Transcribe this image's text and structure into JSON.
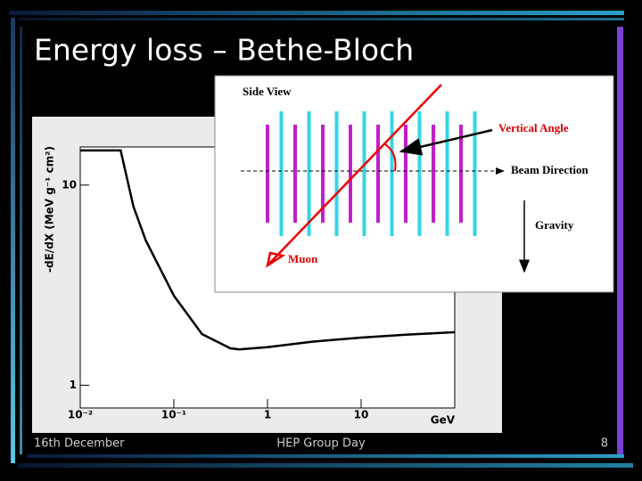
{
  "slide": {
    "title": "Energy loss – Bethe-Bloch",
    "footer": {
      "left": "16th December",
      "center": "HEP Group Day",
      "right": "8"
    }
  },
  "chart_data": {
    "type": "line",
    "x_label": "GeV",
    "y_label": "-dE/dX (MeV g⁻¹ cm²)",
    "x": [
      0.01,
      0.027,
      0.037,
      0.05,
      0.1,
      0.2,
      0.4,
      0.5,
      1,
      3,
      10,
      30,
      100
    ],
    "values": [
      14.9,
      14.9,
      7.8,
      5.3,
      2.8,
      1.8,
      1.53,
      1.51,
      1.55,
      1.65,
      1.73,
      1.79,
      1.84
    ],
    "color": "#000000",
    "xscale": "log",
    "yscale": "log",
    "xlim": [
      0.01,
      100
    ],
    "ylim": [
      0.77,
      15.5
    ],
    "xticks": [
      {
        "value": 0.01,
        "label": "10⁻²"
      },
      {
        "value": 0.1,
        "label": "10⁻¹"
      },
      1,
      10
    ],
    "yticks": [
      1,
      10
    ]
  },
  "diagram": {
    "title": "Side View",
    "labels": {
      "angle": "Vertical Angle",
      "beam": "Beam Direction",
      "gravity": "Gravity",
      "muon": "Muon"
    }
  }
}
